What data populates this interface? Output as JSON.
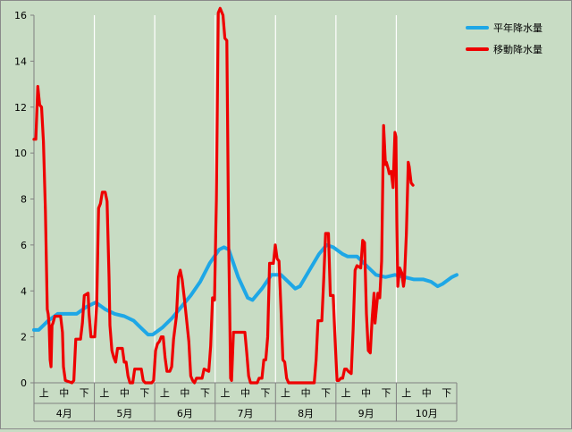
{
  "chart_data": {
    "type": "line",
    "xlabel": "",
    "ylabel": "",
    "ylim": [
      0,
      16
    ],
    "y_ticks": [
      "0",
      "2",
      "4",
      "6",
      "8",
      "10",
      "12",
      "14",
      "16"
    ],
    "months": [
      "4月",
      "5月",
      "6月",
      "7月",
      "8月",
      "9月",
      "10月"
    ],
    "periods": [
      "上",
      "中",
      "下"
    ],
    "x_count": 212,
    "grid": "vertical lines at month boundaries",
    "legend_position": "right",
    "series": [
      {
        "name": "平年降水量",
        "color": "#1ea7e6",
        "points": [
          [
            0,
            2.3
          ],
          [
            5,
            2.3
          ],
          [
            15,
            2.7
          ],
          [
            25,
            3.0
          ],
          [
            45,
            3.0
          ],
          [
            55,
            3.3
          ],
          [
            65,
            3.5
          ],
          [
            75,
            3.2
          ],
          [
            85,
            3.0
          ],
          [
            95,
            2.9
          ],
          [
            105,
            2.7
          ],
          [
            110,
            2.5
          ],
          [
            115,
            2.3
          ],
          [
            120,
            2.1
          ],
          [
            125,
            2.1
          ],
          [
            135,
            2.4
          ],
          [
            145,
            2.8
          ],
          [
            155,
            3.3
          ],
          [
            165,
            3.8
          ],
          [
            175,
            4.4
          ],
          [
            185,
            5.2
          ],
          [
            195,
            5.8
          ],
          [
            200,
            5.9
          ],
          [
            205,
            5.8
          ],
          [
            215,
            4.6
          ],
          [
            225,
            3.7
          ],
          [
            230,
            3.6
          ],
          [
            240,
            4.1
          ],
          [
            250,
            4.7
          ],
          [
            260,
            4.7
          ],
          [
            270,
            4.3
          ],
          [
            275,
            4.1
          ],
          [
            280,
            4.2
          ],
          [
            290,
            4.9
          ],
          [
            300,
            5.6
          ],
          [
            308,
            6.0
          ],
          [
            315,
            5.9
          ],
          [
            325,
            5.6
          ],
          [
            330,
            5.5
          ],
          [
            340,
            5.5
          ],
          [
            350,
            5.1
          ],
          [
            360,
            4.7
          ],
          [
            370,
            4.6
          ],
          [
            380,
            4.7
          ],
          [
            390,
            4.6
          ],
          [
            400,
            4.5
          ],
          [
            410,
            4.5
          ],
          [
            418,
            4.4
          ],
          [
            425,
            4.2
          ],
          [
            430,
            4.3
          ],
          [
            440,
            4.6
          ],
          [
            445,
            4.7
          ]
        ]
      },
      {
        "name": "移動降水量",
        "color": "#ee0000",
        "points": [
          [
            0,
            10.6
          ],
          [
            2,
            10.6
          ],
          [
            4,
            12.9
          ],
          [
            6,
            12.1
          ],
          [
            8,
            12.0
          ],
          [
            10,
            10.5
          ],
          [
            12,
            7.5
          ],
          [
            14,
            3.2
          ],
          [
            15,
            3.0
          ],
          [
            16,
            2.5
          ],
          [
            17,
            1.0
          ],
          [
            18,
            0.7
          ],
          [
            19,
            2.5
          ],
          [
            20,
            2.6
          ],
          [
            22,
            2.9
          ],
          [
            28,
            2.9
          ],
          [
            30,
            2.2
          ],
          [
            31,
            0.7
          ],
          [
            33,
            0.1
          ],
          [
            40,
            0.0
          ],
          [
            42,
            0.1
          ],
          [
            44,
            1.9
          ],
          [
            49,
            1.9
          ],
          [
            51,
            2.6
          ],
          [
            53,
            3.8
          ],
          [
            57,
            3.9
          ],
          [
            58,
            3.0
          ],
          [
            60,
            2.0
          ],
          [
            64,
            2.0
          ],
          [
            66,
            3.4
          ],
          [
            68,
            7.6
          ],
          [
            70,
            7.8
          ],
          [
            72,
            8.3
          ],
          [
            75,
            8.3
          ],
          [
            77,
            7.9
          ],
          [
            79,
            4.6
          ],
          [
            80,
            2.5
          ],
          [
            82,
            1.4
          ],
          [
            84,
            1.1
          ],
          [
            86,
            0.9
          ],
          [
            88,
            1.5
          ],
          [
            93,
            1.5
          ],
          [
            95,
            0.9
          ],
          [
            97,
            0.9
          ],
          [
            99,
            0.3
          ],
          [
            101,
            0.0
          ],
          [
            104,
            0.0
          ],
          [
            106,
            0.6
          ],
          [
            113,
            0.6
          ],
          [
            115,
            0.1
          ],
          [
            117,
            0.0
          ],
          [
            124,
            0.0
          ],
          [
            126,
            0.1
          ],
          [
            128,
            1.4
          ],
          [
            130,
            1.7
          ],
          [
            132,
            1.8
          ],
          [
            134,
            2.0
          ],
          [
            136,
            2.0
          ],
          [
            138,
            1.1
          ],
          [
            140,
            0.5
          ],
          [
            143,
            0.5
          ],
          [
            145,
            0.7
          ],
          [
            147,
            1.9
          ],
          [
            150,
            2.9
          ],
          [
            152,
            4.6
          ],
          [
            154,
            4.9
          ],
          [
            156,
            4.5
          ],
          [
            158,
            3.8
          ],
          [
            160,
            3.0
          ],
          [
            163,
            1.8
          ],
          [
            165,
            0.3
          ],
          [
            167,
            0.1
          ],
          [
            169,
            0.0
          ],
          [
            171,
            0.2
          ],
          [
            177,
            0.2
          ],
          [
            179,
            0.6
          ],
          [
            184,
            0.5
          ],
          [
            186,
            1.6
          ],
          [
            188,
            3.7
          ],
          [
            190,
            3.6
          ],
          [
            192,
            8.0
          ],
          [
            194,
            16.1
          ],
          [
            196,
            16.3
          ],
          [
            199,
            16.0
          ],
          [
            201,
            15.0
          ],
          [
            203,
            14.9
          ],
          [
            205,
            6.0
          ],
          [
            206,
            3.2
          ],
          [
            207,
            0.2
          ],
          [
            208,
            0.1
          ],
          [
            210,
            2.2
          ],
          [
            222,
            2.2
          ],
          [
            224,
            1.3
          ],
          [
            226,
            0.3
          ],
          [
            228,
            0.0
          ],
          [
            235,
            0.0
          ],
          [
            237,
            0.2
          ],
          [
            240,
            0.2
          ],
          [
            242,
            1.0
          ],
          [
            244,
            1.0
          ],
          [
            246,
            2.0
          ],
          [
            248,
            5.2
          ],
          [
            252,
            5.2
          ],
          [
            254,
            6.0
          ],
          [
            256,
            5.4
          ],
          [
            258,
            5.3
          ],
          [
            260,
            3.2
          ],
          [
            262,
            1.0
          ],
          [
            264,
            0.9
          ],
          [
            266,
            0.2
          ],
          [
            268,
            0.0
          ],
          [
            295,
            0.0
          ],
          [
            297,
            1.0
          ],
          [
            299,
            2.7
          ],
          [
            303,
            2.7
          ],
          [
            305,
            4.5
          ],
          [
            307,
            6.5
          ],
          [
            310,
            6.5
          ],
          [
            312,
            3.8
          ],
          [
            315,
            3.8
          ],
          [
            317,
            1.9
          ],
          [
            319,
            0.1
          ],
          [
            321,
            0.1
          ],
          [
            323,
            0.2
          ],
          [
            325,
            0.2
          ],
          [
            327,
            0.6
          ],
          [
            329,
            0.6
          ],
          [
            331,
            0.5
          ],
          [
            334,
            0.4
          ],
          [
            336,
            2.3
          ],
          [
            338,
            4.9
          ],
          [
            340,
            5.1
          ],
          [
            344,
            5.0
          ],
          [
            346,
            6.2
          ],
          [
            348,
            6.1
          ],
          [
            350,
            3.0
          ],
          [
            352,
            1.4
          ],
          [
            354,
            1.3
          ],
          [
            356,
            2.8
          ],
          [
            358,
            3.9
          ],
          [
            359,
            2.6
          ],
          [
            362,
            3.9
          ],
          [
            364,
            3.7
          ],
          [
            366,
            5.3
          ],
          [
            368,
            11.2
          ],
          [
            370,
            9.5
          ],
          [
            371,
            9.6
          ],
          [
            373,
            9.3
          ],
          [
            374,
            9.1
          ],
          [
            376,
            9.2
          ],
          [
            378,
            8.5
          ],
          [
            380,
            10.9
          ],
          [
            381,
            10.7
          ],
          [
            382,
            7.0
          ],
          [
            383,
            4.2
          ],
          [
            385,
            5.0
          ],
          [
            387,
            4.8
          ],
          [
            389,
            4.2
          ],
          [
            390,
            4.5
          ],
          [
            392,
            6.5
          ],
          [
            394,
            9.6
          ],
          [
            395,
            9.4
          ],
          [
            397,
            8.7
          ],
          [
            399,
            8.6
          ]
        ]
      }
    ]
  }
}
